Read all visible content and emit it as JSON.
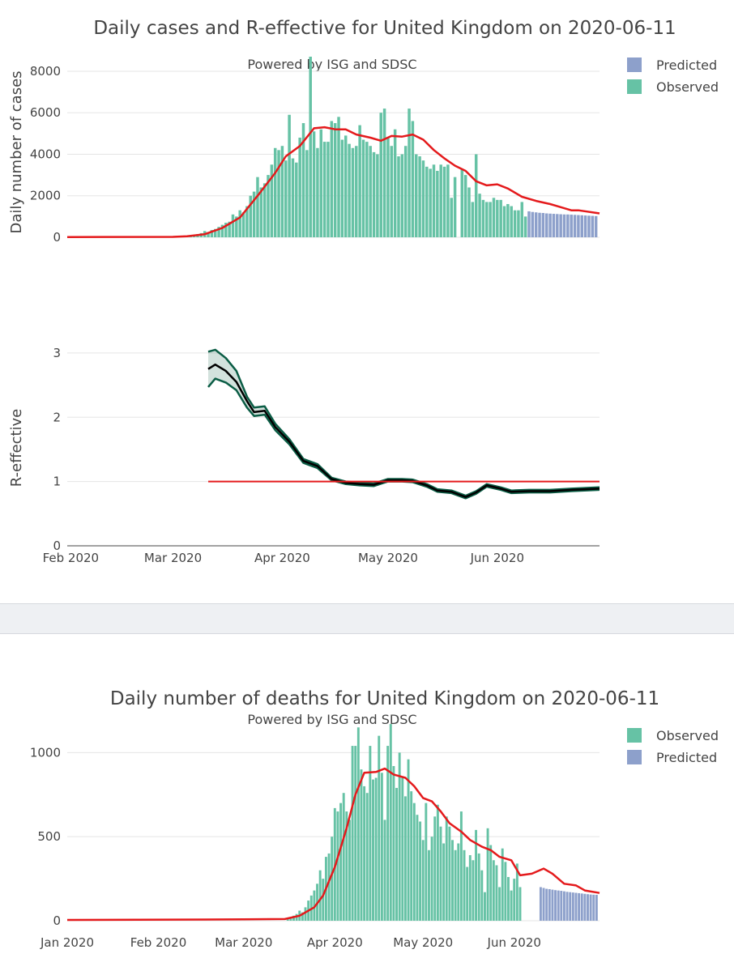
{
  "colors": {
    "observed": "#66c2a5",
    "predicted": "#8da0cb",
    "smooth": "#e41a1c",
    "r_band": "#0b5d45",
    "r_line": "#000000",
    "grid": "#e5e5e5",
    "separator": "#eef0f3"
  },
  "chart_data": [
    {
      "type": "bar",
      "title": "Daily cases and R-effective for United Kingdom on 2020-06-11",
      "subtitle": "Powered by ISG and SDSC",
      "ylabel": "Daily number of cases",
      "ylim": [
        0,
        8700
      ],
      "yticks": [
        0,
        2000,
        4000,
        6000,
        8000
      ],
      "ytick_labels": [
        "0",
        "2000",
        "4000",
        "6000",
        "8000"
      ],
      "x_start": "2020-01-31",
      "x_end": "2020-06-30",
      "legend": [
        {
          "name": "Predicted",
          "color": "#8da0cb"
        },
        {
          "name": "Observed",
          "color": "#66c2a5"
        }
      ],
      "series": [
        {
          "name": "Observed",
          "start": "2020-03-05",
          "values": [
            30,
            60,
            100,
            150,
            200,
            300,
            250,
            350,
            400,
            500,
            600,
            700,
            750,
            1100,
            1000,
            1300,
            1200,
            1500,
            2000,
            2200,
            2900,
            2400,
            2600,
            3000,
            3500,
            4300,
            4200,
            4400,
            3700,
            5900,
            3800,
            3600,
            4800,
            5500,
            4200,
            8700,
            5100,
            4300,
            5200,
            4600,
            4600,
            5600,
            5500,
            5800,
            4700,
            4900,
            4500,
            4300,
            4400,
            5400,
            4700,
            4600,
            4400,
            4100,
            4000,
            6000,
            6200,
            4800,
            4400,
            5200,
            3900,
            4000,
            4400,
            6200,
            5600,
            4000,
            3900,
            3700,
            3400,
            3300,
            3500,
            3200,
            3500,
            3400,
            3500,
            1900,
            2900,
            0,
            3300,
            3000,
            2400,
            1700,
            4000,
            2100,
            1800,
            1700,
            1700,
            1900,
            1800,
            1800,
            1500,
            1600,
            1500,
            1300,
            1300,
            1700,
            1000
          ]
        },
        {
          "name": "Predicted",
          "start": "2020-06-10",
          "values": [
            1250,
            1220,
            1200,
            1180,
            1170,
            1150,
            1140,
            1130,
            1120,
            1110,
            1100,
            1100,
            1090,
            1080,
            1070,
            1060,
            1050,
            1040,
            1030,
            1020
          ]
        },
        {
          "name": "Smoothed",
          "points": [
            [
              "2020-01-31",
              10
            ],
            [
              "2020-03-01",
              20
            ],
            [
              "2020-03-05",
              50
            ],
            [
              "2020-03-10",
              150
            ],
            [
              "2020-03-15",
              450
            ],
            [
              "2020-03-20",
              950
            ],
            [
              "2020-03-25",
              2000
            ],
            [
              "2020-03-30",
              3100
            ],
            [
              "2020-04-02",
              3900
            ],
            [
              "2020-04-06",
              4400
            ],
            [
              "2020-04-10",
              5250
            ],
            [
              "2020-04-13",
              5300
            ],
            [
              "2020-04-16",
              5200
            ],
            [
              "2020-04-19",
              5200
            ],
            [
              "2020-04-22",
              4950
            ],
            [
              "2020-04-26",
              4800
            ],
            [
              "2020-04-29",
              4650
            ],
            [
              "2020-05-02",
              4880
            ],
            [
              "2020-05-05",
              4850
            ],
            [
              "2020-05-08",
              4950
            ],
            [
              "2020-05-11",
              4700
            ],
            [
              "2020-05-14",
              4200
            ],
            [
              "2020-05-17",
              3800
            ],
            [
              "2020-05-20",
              3450
            ],
            [
              "2020-05-23",
              3200
            ],
            [
              "2020-05-26",
              2700
            ],
            [
              "2020-05-29",
              2500
            ],
            [
              "2020-06-01",
              2550
            ],
            [
              "2020-06-04",
              2350
            ],
            [
              "2020-06-08",
              1950
            ],
            [
              "2020-06-12",
              1750
            ],
            [
              "2020-06-16",
              1600
            ],
            [
              "2020-06-19",
              1450
            ],
            [
              "2020-06-22",
              1300
            ],
            [
              "2020-06-24",
              1300
            ],
            [
              "2020-06-30",
              1150
            ]
          ]
        }
      ]
    },
    {
      "type": "line",
      "ylabel": "R-effective",
      "ylim": [
        0,
        3.2
      ],
      "yticks": [
        0,
        1,
        2,
        3
      ],
      "ytick_labels": [
        "0",
        "1",
        "2",
        "3"
      ],
      "x_start": "2020-01-31",
      "x_end": "2020-06-30",
      "xticks": [
        "2020-02-01",
        "2020-03-01",
        "2020-04-01",
        "2020-05-01",
        "2020-06-01"
      ],
      "xtick_labels": [
        "Feb 2020",
        "Mar 2020",
        "Apr 2020",
        "May 2020",
        "Jun 2020"
      ],
      "threshold": 1,
      "threshold_range": [
        "2020-03-11",
        "2020-06-30"
      ],
      "series": [
        {
          "name": "R-effective",
          "points": [
            [
              "2020-03-11",
              2.75
            ],
            [
              "2020-03-13",
              2.82
            ],
            [
              "2020-03-16",
              2.72
            ],
            [
              "2020-03-19",
              2.55
            ],
            [
              "2020-03-22",
              2.25
            ],
            [
              "2020-03-24",
              2.08
            ],
            [
              "2020-03-27",
              2.1
            ],
            [
              "2020-03-30",
              1.85
            ],
            [
              "2020-04-03",
              1.62
            ],
            [
              "2020-04-07",
              1.32
            ],
            [
              "2020-04-11",
              1.24
            ],
            [
              "2020-04-15",
              1.04
            ],
            [
              "2020-04-19",
              0.98
            ],
            [
              "2020-04-23",
              0.96
            ],
            [
              "2020-04-27",
              0.95
            ],
            [
              "2020-05-01",
              1.02
            ],
            [
              "2020-05-05",
              1.02
            ],
            [
              "2020-05-08",
              1.01
            ],
            [
              "2020-05-12",
              0.94
            ],
            [
              "2020-05-15",
              0.86
            ],
            [
              "2020-05-19",
              0.84
            ],
            [
              "2020-05-23",
              0.76
            ],
            [
              "2020-05-26",
              0.83
            ],
            [
              "2020-05-29",
              0.94
            ],
            [
              "2020-06-02",
              0.89
            ],
            [
              "2020-06-05",
              0.84
            ],
            [
              "2020-06-10",
              0.85
            ],
            [
              "2020-06-16",
              0.85
            ],
            [
              "2020-06-22",
              0.87
            ],
            [
              "2020-06-30",
              0.89
            ]
          ],
          "upper": [
            [
              "2020-03-11",
              3.02
            ],
            [
              "2020-03-13",
              3.05
            ],
            [
              "2020-03-16",
              2.92
            ],
            [
              "2020-03-19",
              2.72
            ],
            [
              "2020-03-22",
              2.32
            ],
            [
              "2020-03-24",
              2.15
            ],
            [
              "2020-03-27",
              2.17
            ],
            [
              "2020-03-30",
              1.9
            ],
            [
              "2020-04-03",
              1.66
            ],
            [
              "2020-04-07",
              1.35
            ],
            [
              "2020-04-11",
              1.27
            ],
            [
              "2020-04-15",
              1.06
            ],
            [
              "2020-04-19",
              1.0
            ],
            [
              "2020-04-23",
              0.98
            ],
            [
              "2020-04-27",
              0.97
            ],
            [
              "2020-05-01",
              1.04
            ],
            [
              "2020-05-05",
              1.04
            ],
            [
              "2020-05-08",
              1.03
            ],
            [
              "2020-05-12",
              0.96
            ],
            [
              "2020-05-15",
              0.88
            ],
            [
              "2020-05-19",
              0.86
            ],
            [
              "2020-05-23",
              0.78
            ],
            [
              "2020-05-26",
              0.85
            ],
            [
              "2020-05-29",
              0.96
            ],
            [
              "2020-06-02",
              0.91
            ],
            [
              "2020-06-05",
              0.86
            ],
            [
              "2020-06-10",
              0.87
            ],
            [
              "2020-06-16",
              0.87
            ],
            [
              "2020-06-22",
              0.89
            ],
            [
              "2020-06-30",
              0.91
            ]
          ],
          "lower": [
            [
              "2020-03-11",
              2.47
            ],
            [
              "2020-03-13",
              2.6
            ],
            [
              "2020-03-16",
              2.54
            ],
            [
              "2020-03-19",
              2.42
            ],
            [
              "2020-03-22",
              2.15
            ],
            [
              "2020-03-24",
              2.02
            ],
            [
              "2020-03-27",
              2.04
            ],
            [
              "2020-03-30",
              1.8
            ],
            [
              "2020-04-03",
              1.58
            ],
            [
              "2020-04-07",
              1.29
            ],
            [
              "2020-04-11",
              1.21
            ],
            [
              "2020-04-15",
              1.02
            ],
            [
              "2020-04-19",
              0.96
            ],
            [
              "2020-04-23",
              0.94
            ],
            [
              "2020-04-27",
              0.93
            ],
            [
              "2020-05-01",
              1.0
            ],
            [
              "2020-05-05",
              1.0
            ],
            [
              "2020-05-08",
              0.99
            ],
            [
              "2020-05-12",
              0.92
            ],
            [
              "2020-05-15",
              0.84
            ],
            [
              "2020-05-19",
              0.82
            ],
            [
              "2020-05-23",
              0.74
            ],
            [
              "2020-05-26",
              0.81
            ],
            [
              "2020-05-29",
              0.92
            ],
            [
              "2020-06-02",
              0.87
            ],
            [
              "2020-06-05",
              0.82
            ],
            [
              "2020-06-10",
              0.83
            ],
            [
              "2020-06-16",
              0.83
            ],
            [
              "2020-06-22",
              0.85
            ],
            [
              "2020-06-30",
              0.87
            ]
          ]
        }
      ]
    },
    {
      "type": "bar",
      "title": "Daily number of deaths for United Kingdom on 2020-06-11",
      "subtitle": "Powered by ISG and SDSC",
      "ylim": [
        0,
        1180
      ],
      "yticks": [
        0,
        500,
        1000
      ],
      "ytick_labels": [
        "0",
        "500",
        "1000"
      ],
      "x_start": "2020-01-01",
      "x_end": "2020-06-30",
      "xticks": [
        "2020-01-01",
        "2020-02-01",
        "2020-03-01",
        "2020-04-01",
        "2020-05-01",
        "2020-06-01"
      ],
      "xtick_labels": [
        "Jan 2020",
        "Feb 2020",
        "Mar 2020",
        "Apr 2020",
        "May 2020",
        "Jun 2020"
      ],
      "legend": [
        {
          "name": "Observed",
          "color": "#66c2a5"
        },
        {
          "name": "Predicted",
          "color": "#8da0cb"
        }
      ],
      "series": [
        {
          "name": "Observed",
          "start": "2020-03-16",
          "values": [
            10,
            20,
            30,
            40,
            60,
            50,
            80,
            120,
            150,
            180,
            220,
            300,
            250,
            380,
            400,
            500,
            670,
            650,
            700,
            760,
            650,
            600,
            1040,
            1040,
            1150,
            900,
            800,
            760,
            1040,
            840,
            850,
            1100,
            880,
            600,
            1040,
            1170,
            920,
            790,
            1000,
            850,
            740,
            960,
            770,
            700,
            630,
            590,
            480,
            700,
            420,
            500,
            620,
            690,
            560,
            460,
            620,
            560,
            480,
            420,
            460,
            650,
            420,
            320,
            390,
            360,
            540,
            400,
            300,
            170,
            550,
            450,
            360,
            330,
            200,
            430,
            350,
            260,
            180,
            250,
            340,
            200
          ]
        },
        {
          "name": "Predicted",
          "start": "2020-06-10",
          "values": [
            200,
            195,
            190,
            188,
            185,
            182,
            180,
            178,
            175,
            172,
            170,
            168,
            166,
            164,
            162,
            160,
            158,
            156,
            155,
            154
          ]
        },
        {
          "name": "Smoothed",
          "points": [
            [
              "2020-01-01",
              5
            ],
            [
              "2020-03-01",
              8
            ],
            [
              "2020-03-15",
              10
            ],
            [
              "2020-03-20",
              30
            ],
            [
              "2020-03-25",
              80
            ],
            [
              "2020-03-28",
              150
            ],
            [
              "2020-04-01",
              320
            ],
            [
              "2020-04-05",
              550
            ],
            [
              "2020-04-08",
              750
            ],
            [
              "2020-04-11",
              880
            ],
            [
              "2020-04-15",
              885
            ],
            [
              "2020-04-18",
              905
            ],
            [
              "2020-04-21",
              870
            ],
            [
              "2020-04-25",
              850
            ],
            [
              "2020-04-28",
              800
            ],
            [
              "2020-05-01",
              730
            ],
            [
              "2020-05-04",
              710
            ],
            [
              "2020-05-07",
              650
            ],
            [
              "2020-05-10",
              580
            ],
            [
              "2020-05-14",
              530
            ],
            [
              "2020-05-17",
              480
            ],
            [
              "2020-05-21",
              440
            ],
            [
              "2020-05-24",
              420
            ],
            [
              "2020-05-27",
              380
            ],
            [
              "2020-05-31",
              360
            ],
            [
              "2020-06-03",
              270
            ],
            [
              "2020-06-07",
              280
            ],
            [
              "2020-06-11",
              310
            ],
            [
              "2020-06-14",
              280
            ],
            [
              "2020-06-18",
              220
            ],
            [
              "2020-06-22",
              210
            ],
            [
              "2020-06-25",
              180
            ],
            [
              "2020-06-30",
              165
            ]
          ]
        }
      ]
    }
  ]
}
